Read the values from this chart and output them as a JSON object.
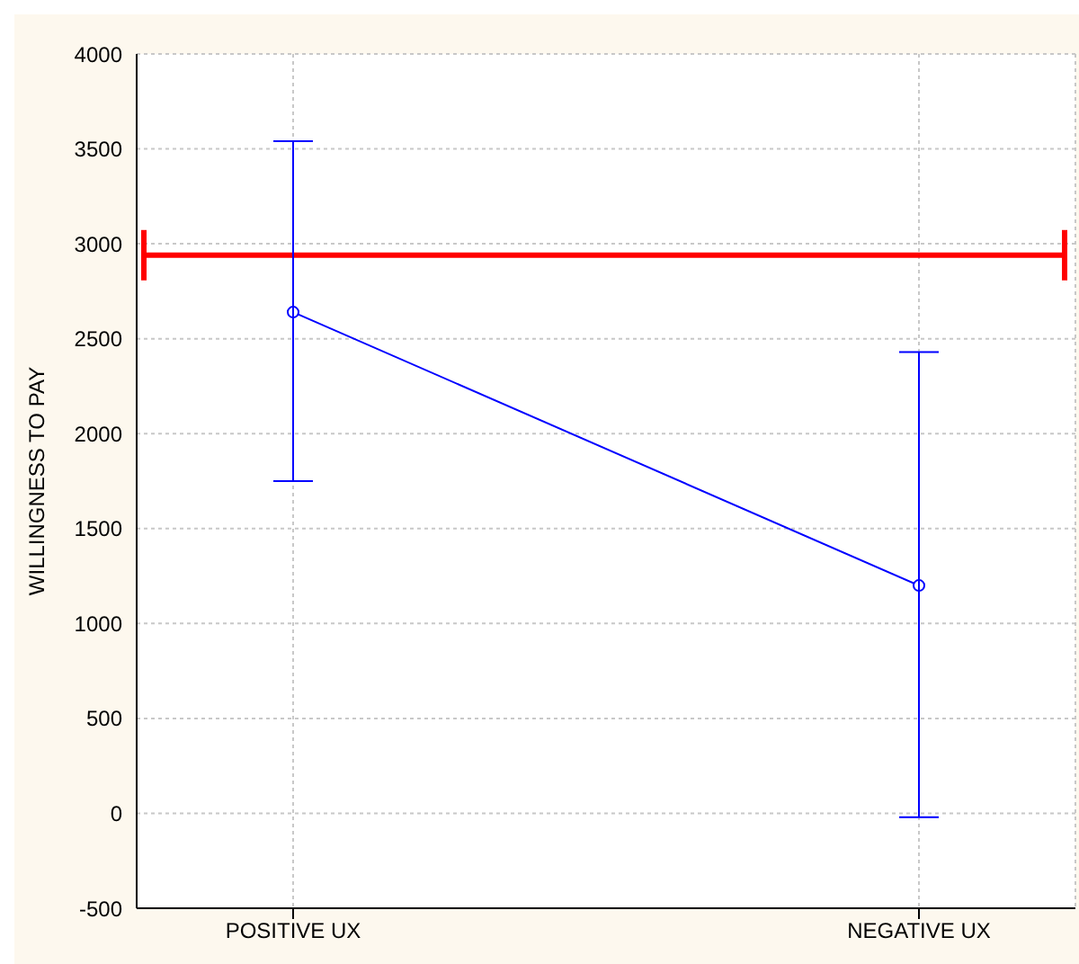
{
  "chart_data": {
    "type": "line",
    "ylabel": "WILLINGNESS TO PAY",
    "categories": [
      "POSITIVE UX",
      "NEGATIVE UX"
    ],
    "series": [
      {
        "color": "#0000ff",
        "values": [
          2640,
          1200
        ],
        "errors": [
          [
            1750,
            3540
          ],
          [
            -20,
            2430
          ]
        ]
      }
    ],
    "ylim": [
      -500,
      4000
    ],
    "yticks": [
      -500,
      0,
      500,
      1000,
      1500,
      2000,
      2500,
      3000,
      3500,
      4000
    ],
    "grid": true,
    "marker": "circle",
    "line_style": "solid",
    "legend": false,
    "ref_lines": [
      {
        "axis": "y",
        "value": 2940,
        "color": "#ff0000"
      }
    ]
  }
}
